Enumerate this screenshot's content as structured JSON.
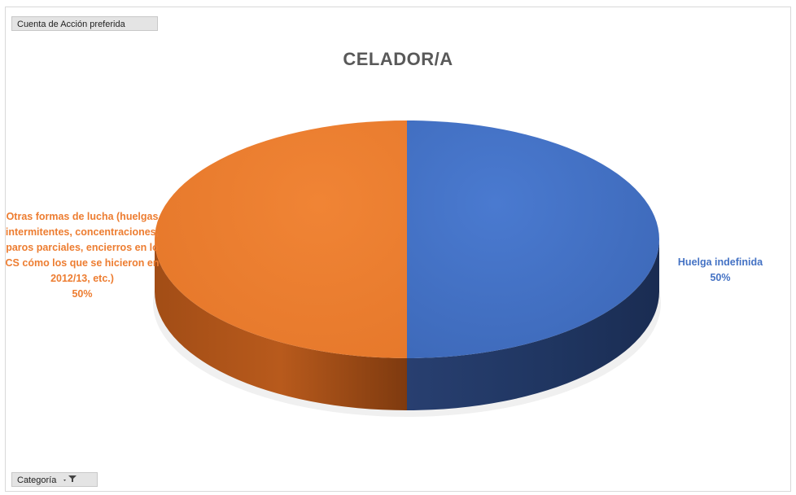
{
  "chart_data": {
    "type": "pie",
    "title": "CELADOR/A",
    "categories": [
      "Huelga indefinida",
      "Otras formas de lucha (huelgas intermitentes, concentraciones, paros parciales, encierros en lo CS cómo los que se hicieron en 2012/13, etc.)"
    ],
    "values": [
      50,
      50
    ],
    "value_labels": [
      "50%",
      "50%"
    ],
    "colors": [
      "#4472c4",
      "#ed7d31"
    ],
    "style": "3d",
    "legend": "none"
  },
  "pivot_fields": {
    "value_field": "Cuenta de Acción preferida",
    "axis_field": "Categoría"
  },
  "icons": {
    "axis_filter": "filter-dropdown-icon"
  }
}
